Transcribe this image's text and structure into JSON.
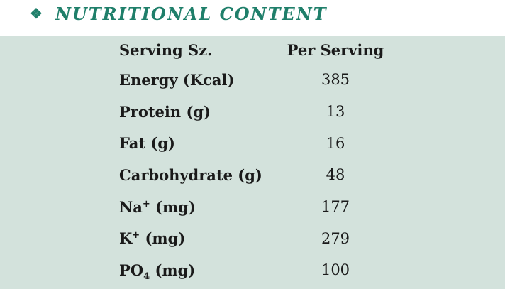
{
  "section": {
    "icon": "diamond-bullet-icon",
    "icon_glyph": "❖",
    "title": "NUTRITIONAL CONTENT",
    "accent_color": "#1f7f6a",
    "panel_color": "#d3e2dc"
  },
  "table": {
    "headers": {
      "name": "Serving Sz.",
      "value": "Per Serving"
    },
    "rows": [
      {
        "label": "Energy (Kcal)",
        "value": "385"
      },
      {
        "label": "Protein (g)",
        "value": "13"
      },
      {
        "label": "Fat (g)",
        "value": "16"
      },
      {
        "label": "Carbohydrate (g)",
        "value": "48"
      },
      {
        "label_main": "Na",
        "label_sup": "+",
        "label_rest": " (mg)",
        "value": "177"
      },
      {
        "label_main": "K",
        "label_sup": "+",
        "label_rest": " (mg)",
        "value": "279"
      },
      {
        "label_main": "PO",
        "label_sub": "4",
        "label_rest": " (mg)",
        "value": "100"
      }
    ]
  }
}
